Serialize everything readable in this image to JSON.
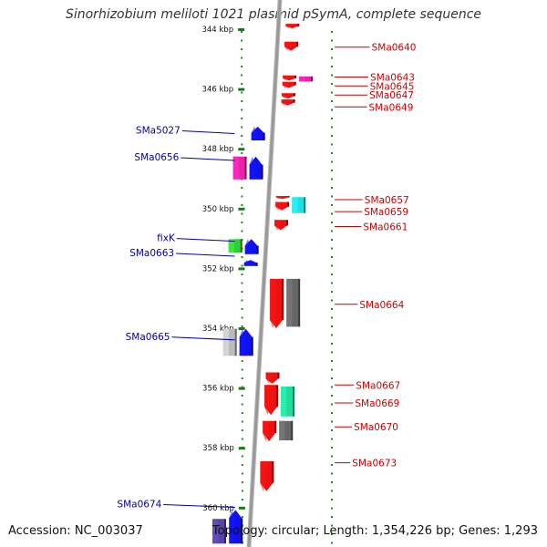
{
  "title": "Sinorhizobium meliloti 1021 plasmid pSymA, complete sequence",
  "footer": {
    "accession": "Accession: NC_003037",
    "info": "Topology: circular; Length: 1,354,226 bp; Genes: 1,293"
  },
  "colors": {
    "forward_label": "#cc0000",
    "reverse_label": "#0000aa",
    "backbone": "#999999",
    "dots": "#1a8a1a"
  },
  "kbp_ticks": [
    {
      "label": "344 kbp",
      "kbp": 344
    },
    {
      "label": "346 kbp",
      "kbp": 346
    },
    {
      "label": "348 kbp",
      "kbp": 348
    },
    {
      "label": "350 kbp",
      "kbp": 350
    },
    {
      "label": "352 kbp",
      "kbp": 352
    },
    {
      "label": "354 kbp",
      "kbp": 354
    },
    {
      "label": "356 kbp",
      "kbp": 356
    },
    {
      "label": "358 kbp",
      "kbp": 358
    },
    {
      "label": "360 kbp",
      "kbp": 360
    }
  ],
  "right_labels": [
    {
      "text": "SMa0640",
      "kbp": 344.6
    },
    {
      "text": "SMa0643",
      "kbp": 345.6
    },
    {
      "text": "SMa0645",
      "kbp": 345.9
    },
    {
      "text": "SMa0647",
      "kbp": 346.2
    },
    {
      "text": "SMa0649",
      "kbp": 346.6
    },
    {
      "text": "SMa0657",
      "kbp": 349.7
    },
    {
      "text": "SMa0659",
      "kbp": 350.1
    },
    {
      "text": "SMa0661",
      "kbp": 350.6
    },
    {
      "text": "SMa0664",
      "kbp": 353.2
    },
    {
      "text": "SMa0667",
      "kbp": 355.9
    },
    {
      "text": "SMa0669",
      "kbp": 356.5
    },
    {
      "text": "SMa0670",
      "kbp": 357.3
    },
    {
      "text": "SMa0673",
      "kbp": 358.5
    }
  ],
  "left_labels": [
    {
      "text": "SMa5027",
      "kbp": 347.4
    },
    {
      "text": "SMa0656",
      "kbp": 348.3
    },
    {
      "text": "fixK",
      "kbp": 351.0
    },
    {
      "text": "SMa0663",
      "kbp": 351.5
    },
    {
      "text": "SMa0665",
      "kbp": 354.3
    },
    {
      "text": "SMa0674",
      "kbp": 359.9
    }
  ],
  "features": [
    {
      "track": "fwd",
      "strand": "+",
      "color": "#ee1111",
      "start": 343.82,
      "end": 343.97
    },
    {
      "track": "fwd",
      "strand": "+",
      "color": "#ee1111",
      "start": 344.42,
      "end": 344.72
    },
    {
      "track": "fwd",
      "strand": "+",
      "color": "#ee1111",
      "start": 345.55,
      "end": 345.72
    },
    {
      "track": "fwd",
      "strand": "+",
      "color": "#ee1111",
      "start": 345.76,
      "end": 345.97
    },
    {
      "track": "fwd",
      "strand": "+",
      "color": "#ee1111",
      "start": 346.14,
      "end": 346.32
    },
    {
      "track": "fwd",
      "strand": "+",
      "color": "#ee1111",
      "start": 346.35,
      "end": 346.55
    },
    {
      "track": "fwd-alt",
      "strand": "+",
      "color": "#ee22aa",
      "start": 345.58,
      "end": 345.75
    },
    {
      "track": "rev",
      "strand": "-",
      "color": "#1111ee",
      "start": 347.26,
      "end": 347.72
    },
    {
      "track": "rev",
      "strand": "-",
      "color": "#1111ee",
      "start": 348.26,
      "end": 349.02
    },
    {
      "track": "rev-alt",
      "strand": "-",
      "color": "#ee22aa",
      "start": 348.26,
      "end": 349.02
    },
    {
      "track": "fwd",
      "strand": "+",
      "color": "#ee1111",
      "start": 349.58,
      "end": 349.68
    },
    {
      "track": "fwd",
      "strand": "+",
      "color": "#ee1111",
      "start": 349.78,
      "end": 350.06
    },
    {
      "track": "fwd-alt",
      "strand": "+",
      "color": "#22dddd",
      "start": 349.62,
      "end": 350.15
    },
    {
      "track": "fwd",
      "strand": "+",
      "color": "#ee1111",
      "start": 350.38,
      "end": 350.72
    },
    {
      "track": "rev",
      "strand": "-",
      "color": "#1111ee",
      "start": 351.02,
      "end": 351.52
    },
    {
      "track": "rev-alt",
      "strand": "-",
      "color": "#33cc33",
      "start": 351.02,
      "end": 351.47
    },
    {
      "track": "rev",
      "strand": "-",
      "color": "#1111ee",
      "start": 351.72,
      "end": 351.92
    },
    {
      "track": "fwd",
      "strand": "+",
      "color": "#ee1111",
      "start": 352.35,
      "end": 354.0
    },
    {
      "track": "fwd-alt",
      "strand": "+",
      "color": "#666666",
      "start": 352.35,
      "end": 353.95
    },
    {
      "track": "rev",
      "strand": "-",
      "color": "#1111ee",
      "start": 354.02,
      "end": 354.92
    },
    {
      "track": "rev-alt",
      "strand": "-",
      "color": "#bbbbbb",
      "start": 354.02,
      "end": 354.92
    },
    {
      "track": "fwd",
      "strand": "+",
      "color": "#ee1111",
      "start": 355.48,
      "end": 355.85
    },
    {
      "track": "fwd",
      "strand": "+",
      "color": "#ee1111",
      "start": 355.9,
      "end": 356.9
    },
    {
      "track": "fwd-alt",
      "strand": "+",
      "color": "#22dd99",
      "start": 355.95,
      "end": 356.95
    },
    {
      "track": "fwd",
      "strand": "+",
      "color": "#ee1111",
      "start": 357.1,
      "end": 357.78
    },
    {
      "track": "fwd-alt",
      "strand": "+",
      "color": "#666666",
      "start": 357.1,
      "end": 357.75
    },
    {
      "track": "fwd",
      "strand": "+",
      "color": "#ee1111",
      "start": 358.45,
      "end": 359.45
    },
    {
      "track": "rev",
      "strand": "-",
      "color": "#1111ee",
      "start": 360.08,
      "end": 361.2
    },
    {
      "track": "rev-alt",
      "strand": "-",
      "color": "#5544aa",
      "start": 360.38,
      "end": 361.2
    }
  ]
}
